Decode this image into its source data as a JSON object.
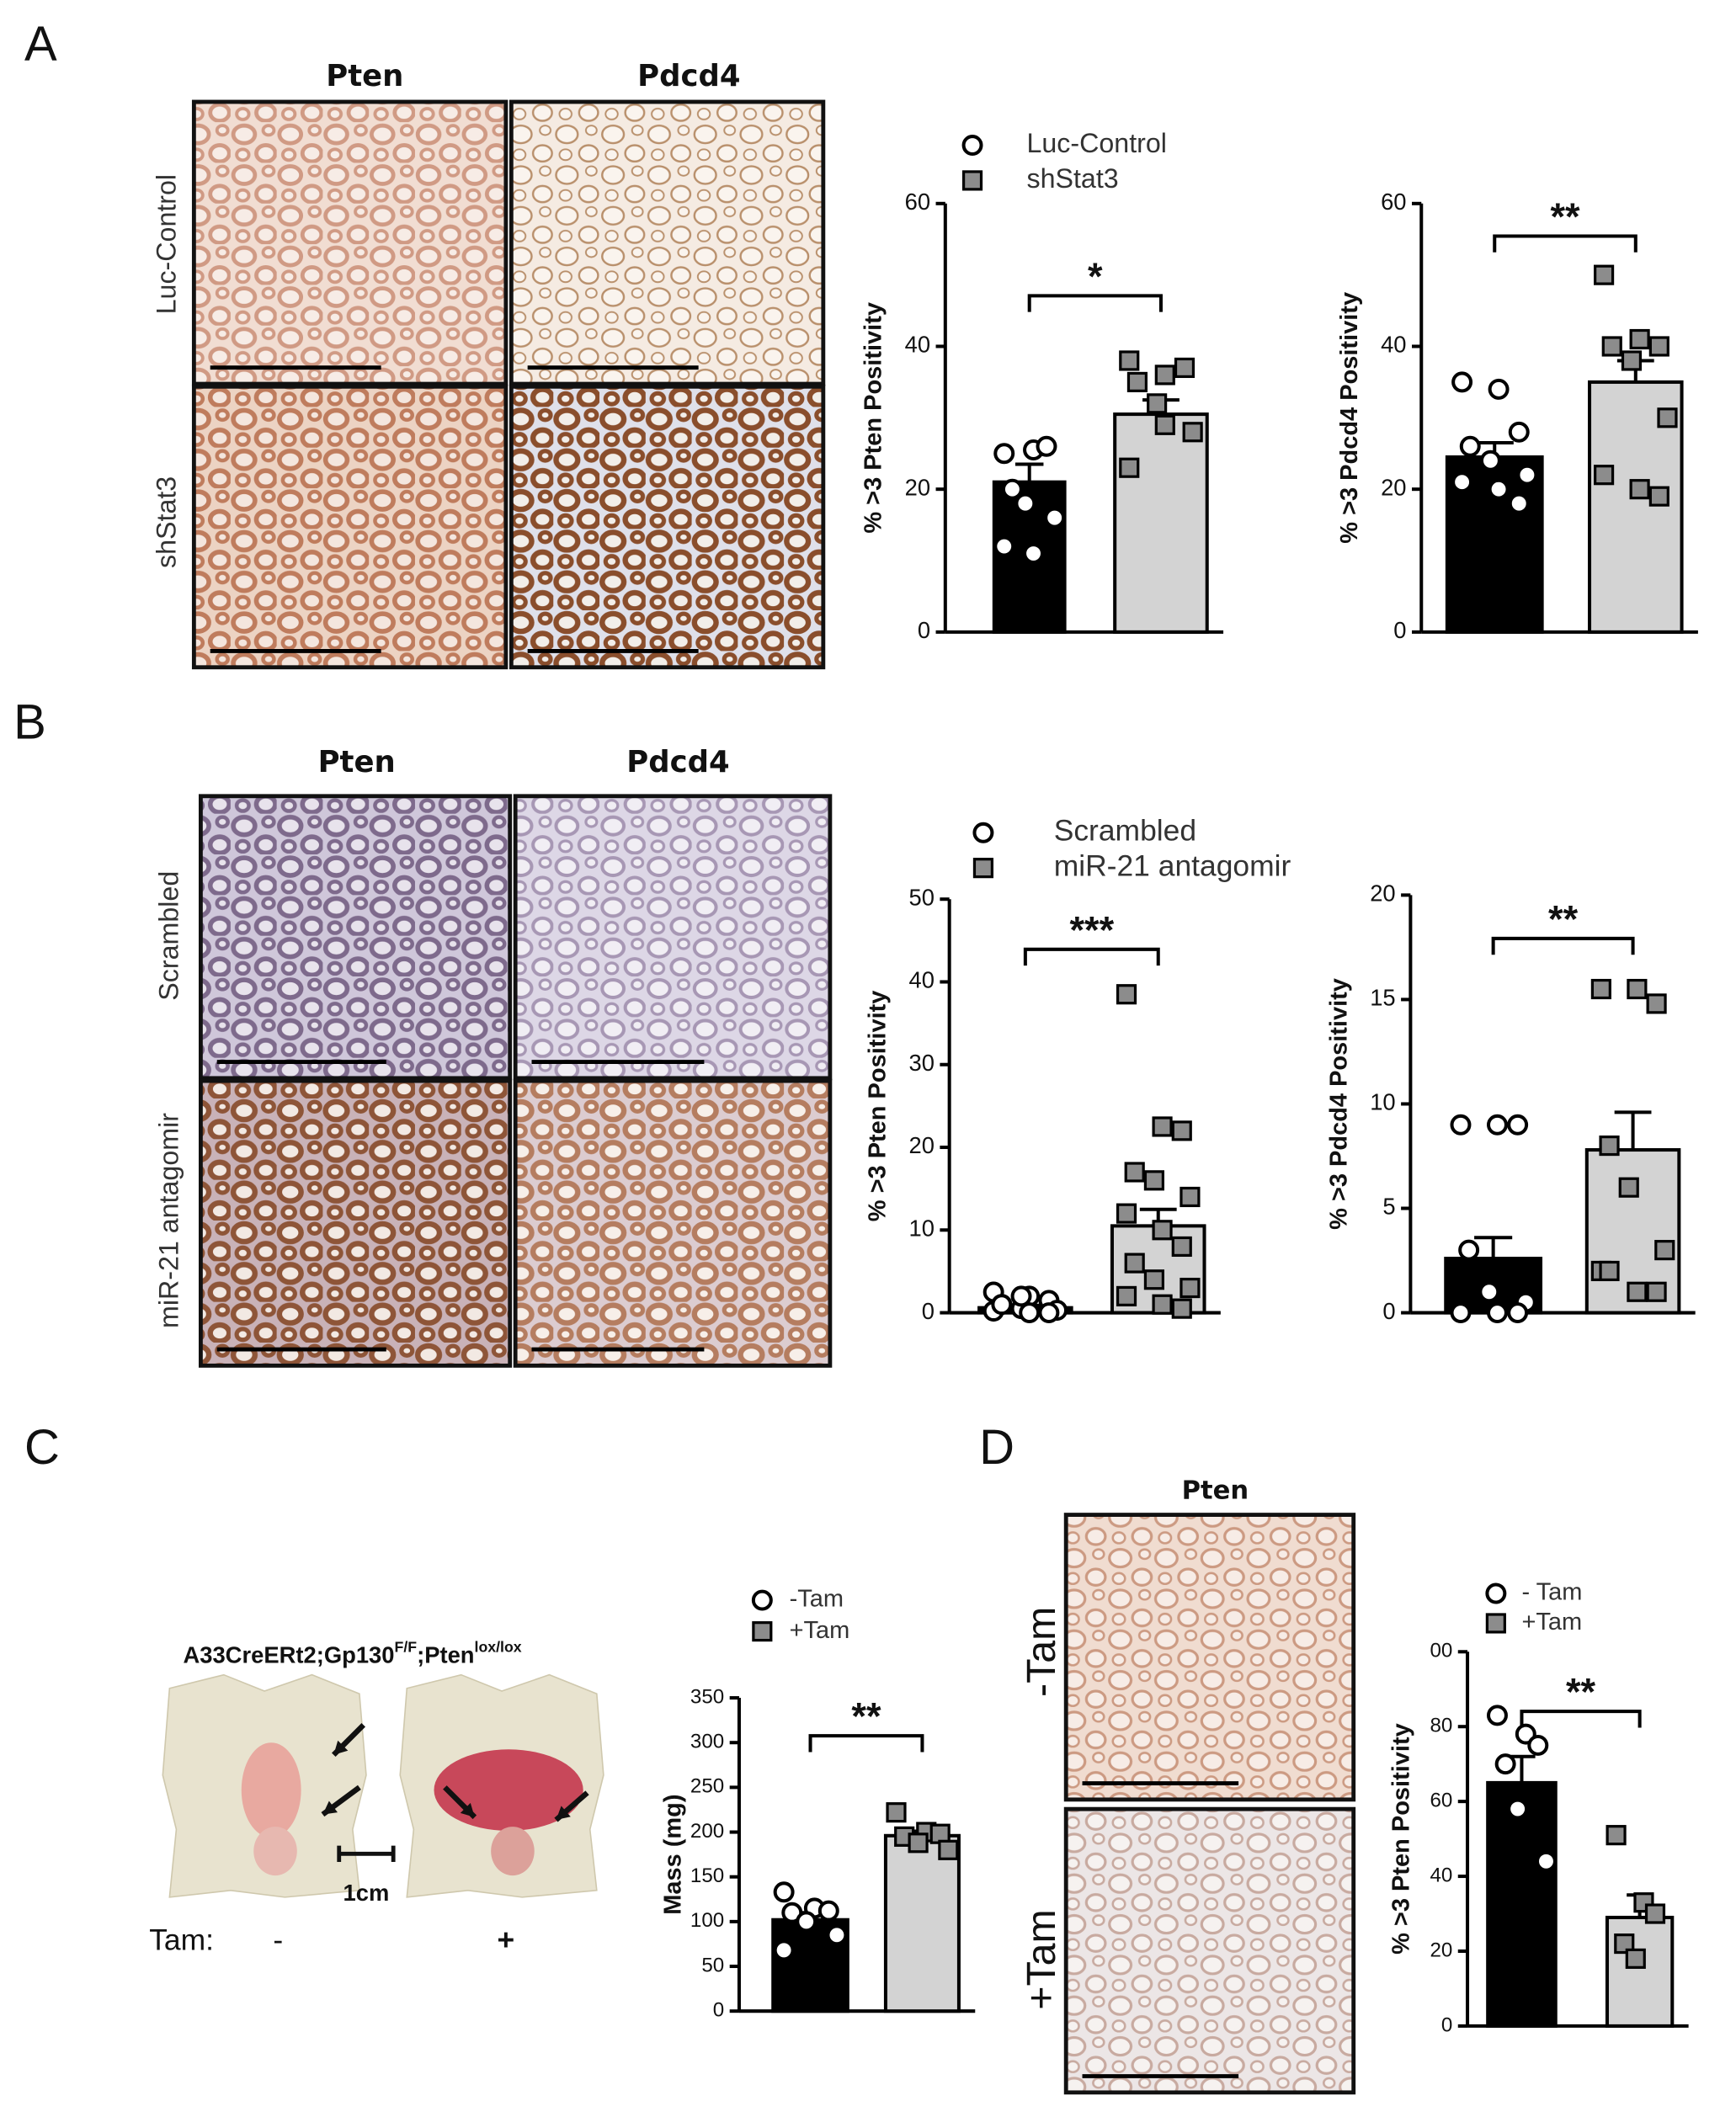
{
  "panel_labels": [
    "A",
    "B",
    "C",
    "D"
  ],
  "images": {
    "A": {
      "columns": [
        "Pten",
        "Pdcd4"
      ],
      "rows": [
        "Luc-Control",
        "shStat3"
      ]
    },
    "B": {
      "columns": [
        "Pten",
        "Pdcd4"
      ],
      "rows": [
        "Scrambled",
        "miR-21 antagomir"
      ]
    },
    "C": {
      "genotype": {
        "part1": "A33CreERt2;Gp130",
        "sup1": "F/F",
        "part2": ";Pten",
        "sup2": "lox/lox"
      },
      "scale": "1cm",
      "treatment_label": "Tam:",
      "treatments": [
        "-",
        "+"
      ]
    },
    "D": {
      "column": "Pten",
      "rows": [
        "-Tam",
        "+Tam"
      ]
    }
  },
  "chart_data": [
    {
      "type": "bar",
      "ylabel": "% >3 Pten Positivity",
      "ylim": [
        0,
        60
      ],
      "yticks": [
        0,
        20,
        40,
        60
      ],
      "significance": "*",
      "series": [
        {
          "name": "Luc-Control",
          "color": "#000000",
          "marker": "circle",
          "marker_color": "#ffffff",
          "value": 21,
          "error": 2.5,
          "points": [
            25,
            25.5,
            26,
            20,
            18,
            16,
            12,
            11
          ]
        },
        {
          "name": "shStat3",
          "color": "#d3d3d3",
          "marker": "square",
          "marker_color": "#8c8c8c",
          "value": 30.5,
          "error": 2,
          "points": [
            38,
            36,
            37,
            35,
            32,
            28,
            23,
            29
          ]
        }
      ]
    },
    {
      "type": "bar",
      "ylabel": "% >3 Pdcd4 Positivity",
      "ylim": [
        0,
        60
      ],
      "yticks": [
        0,
        20,
        40,
        60
      ],
      "significance": "**",
      "series": [
        {
          "color": "#000000",
          "marker": "circle",
          "marker_color": "#ffffff",
          "value": 24.5,
          "error": 2,
          "points": [
            35,
            34,
            28,
            26,
            24,
            22,
            21,
            20,
            18
          ]
        },
        {
          "color": "#d3d3d3",
          "marker": "square",
          "marker_color": "#8c8c8c",
          "value": 35,
          "error": 3,
          "points": [
            50,
            41,
            40,
            40,
            38,
            30,
            22,
            20,
            19
          ]
        }
      ]
    },
    {
      "type": "bar",
      "ylabel": "% >3 Pten Positivity",
      "ylim": [
        0,
        50
      ],
      "yticks": [
        0,
        10,
        20,
        30,
        40,
        50
      ],
      "significance": "***",
      "series": [
        {
          "name": "Scrambled",
          "color": "#000000",
          "marker": "circle",
          "marker_color": "#ffffff",
          "value": 0.6,
          "error": 0.3,
          "points": [
            2.5,
            2,
            1.5,
            1,
            0.5,
            0.3,
            0.2,
            0,
            0,
            1,
            2
          ]
        },
        {
          "name": "miR-21 antagomir",
          "color": "#d3d3d3",
          "marker": "square",
          "marker_color": "#8c8c8c",
          "value": 10.5,
          "error": 2,
          "points": [
            38.5,
            22.5,
            22,
            17,
            16,
            14,
            12,
            10,
            8,
            6,
            4,
            3,
            2,
            1,
            0.5
          ]
        }
      ]
    },
    {
      "type": "bar",
      "ylabel": "% >3 Pdcd4 Positivity",
      "ylim": [
        0,
        20
      ],
      "yticks": [
        0,
        5,
        10,
        15,
        20
      ],
      "significance": "**",
      "series": [
        {
          "color": "#000000",
          "marker": "circle",
          "marker_color": "#ffffff",
          "value": 2.6,
          "error": 1,
          "points": [
            9,
            9,
            9,
            3,
            1,
            0.5,
            0,
            0,
            0
          ]
        },
        {
          "color": "#d3d3d3",
          "marker": "square",
          "marker_color": "#8c8c8c",
          "value": 7.8,
          "error": 1.8,
          "points": [
            15.5,
            15.5,
            14.8,
            8,
            6,
            3,
            2,
            1,
            1,
            2
          ]
        }
      ]
    },
    {
      "type": "bar",
      "ylabel": "Mass (mg)",
      "ylim": [
        0,
        350
      ],
      "yticks": [
        0,
        50,
        100,
        150,
        200,
        250,
        300,
        350
      ],
      "significance": "**",
      "series": [
        {
          "name": "-Tam",
          "color": "#000000",
          "marker": "circle",
          "marker_color": "#ffffff",
          "value": 102,
          "error": 8,
          "points": [
            133,
            115,
            112,
            110,
            100,
            85,
            68
          ]
        },
        {
          "name": "+Tam",
          "color": "#d3d3d3",
          "marker": "square",
          "marker_color": "#8c8c8c",
          "value": 196,
          "error": 5,
          "points": [
            222,
            200,
            198,
            195,
            188,
            180
          ]
        }
      ]
    },
    {
      "type": "bar",
      "ylabel": "% >3 Pten Positivity",
      "ylim": [
        0,
        100
      ],
      "yticks": [
        0,
        20,
        40,
        60,
        80,
        {
          "value": 100,
          "label": "00"
        }
      ],
      "significance": "**",
      "series": [
        {
          "name": "- Tam",
          "color": "#000000",
          "marker": "circle",
          "marker_color": "#ffffff",
          "value": 65,
          "error": 7,
          "points": [
            83,
            78,
            75,
            70,
            58,
            44
          ]
        },
        {
          "name": "+Tam",
          "color": "#d3d3d3",
          "marker": "square",
          "marker_color": "#8c8c8c",
          "value": 29,
          "error": 6,
          "points": [
            51,
            33,
            30,
            22,
            18
          ]
        }
      ]
    }
  ]
}
